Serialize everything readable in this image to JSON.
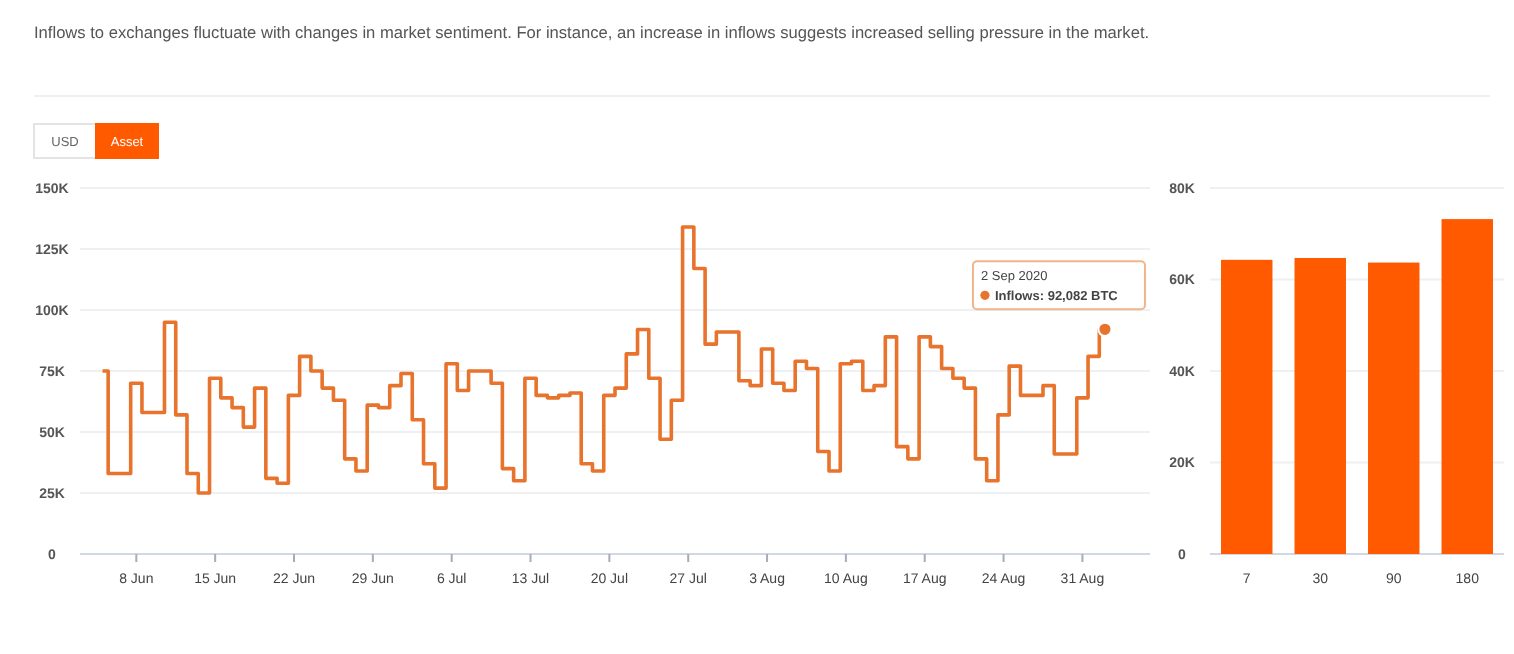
{
  "chart_data": [
    {
      "type": "step",
      "subtitle": "Inflows to exchanges fluctuate with changes in market sentiment. For instance, an increase in inflows suggests increased selling pressure in the market.",
      "x": [
        "2020-06-05",
        "2020-06-06",
        "2020-06-07",
        "2020-06-08",
        "2020-06-09",
        "2020-06-10",
        "2020-06-11",
        "2020-06-12",
        "2020-06-13",
        "2020-06-14",
        "2020-06-15",
        "2020-06-16",
        "2020-06-17",
        "2020-06-18",
        "2020-06-19",
        "2020-06-20",
        "2020-06-21",
        "2020-06-22",
        "2020-06-23",
        "2020-06-24",
        "2020-06-25",
        "2020-06-26",
        "2020-06-27",
        "2020-06-28",
        "2020-06-29",
        "2020-06-30",
        "2020-07-01",
        "2020-07-02",
        "2020-07-03",
        "2020-07-04",
        "2020-07-05",
        "2020-07-06",
        "2020-07-07",
        "2020-07-08",
        "2020-07-09",
        "2020-07-10",
        "2020-07-11",
        "2020-07-12",
        "2020-07-13",
        "2020-07-14",
        "2020-07-15",
        "2020-07-16",
        "2020-07-17",
        "2020-07-18",
        "2020-07-19",
        "2020-07-20",
        "2020-07-21",
        "2020-07-22",
        "2020-07-23",
        "2020-07-24",
        "2020-07-25",
        "2020-07-26",
        "2020-07-27",
        "2020-07-28",
        "2020-07-29",
        "2020-07-30",
        "2020-07-31",
        "2020-08-01",
        "2020-08-02",
        "2020-08-03",
        "2020-08-04",
        "2020-08-05",
        "2020-08-06",
        "2020-08-07",
        "2020-08-08",
        "2020-08-09",
        "2020-08-10",
        "2020-08-11",
        "2020-08-12",
        "2020-08-13",
        "2020-08-14",
        "2020-08-15",
        "2020-08-16",
        "2020-08-17",
        "2020-08-18",
        "2020-08-19",
        "2020-08-20",
        "2020-08-21",
        "2020-08-22",
        "2020-08-23",
        "2020-08-24",
        "2020-08-25",
        "2020-08-26",
        "2020-08-27",
        "2020-08-28",
        "2020-08-29",
        "2020-08-30",
        "2020-08-31",
        "2020-09-01",
        "2020-09-02"
      ],
      "series": [
        {
          "color": "#e8732c",
          "values": [
            75000,
            33000,
            33000,
            70000,
            58000,
            58000,
            95000,
            57000,
            33000,
            25000,
            72000,
            64000,
            60000,
            52000,
            68000,
            31000,
            29000,
            65000,
            81000,
            75000,
            68000,
            63000,
            39000,
            34000,
            61000,
            60000,
            69000,
            74000,
            55000,
            37000,
            27000,
            78000,
            67000,
            75000,
            75000,
            70000,
            35000,
            30000,
            72000,
            65000,
            64000,
            65000,
            66000,
            37000,
            34000,
            65000,
            68000,
            82000,
            92000,
            72000,
            47000,
            63000,
            134000,
            117000,
            86000,
            91000,
            91000,
            71000,
            69000,
            84000,
            70000,
            67000,
            79000,
            76000,
            42000,
            34000,
            78000,
            79000,
            67000,
            69000,
            89000,
            44000,
            39000,
            89000,
            85000,
            76000,
            72000,
            68000,
            39000,
            30000,
            57000,
            77000,
            65000,
            65000,
            69000,
            41000,
            41000,
            64000,
            81000,
            92082
          ]
        }
      ],
      "xlim": [
        "2020-06-03",
        "2020-09-06"
      ],
      "xticks": [
        {
          "value": "2020-06-08",
          "label": "8 Jun"
        },
        {
          "value": "2020-06-15",
          "label": "15 Jun"
        },
        {
          "value": "2020-06-22",
          "label": "22 Jun"
        },
        {
          "value": "2020-06-29",
          "label": "29 Jun"
        },
        {
          "value": "2020-07-06",
          "label": "6 Jul"
        },
        {
          "value": "2020-07-13",
          "label": "13 Jul"
        },
        {
          "value": "2020-07-20",
          "label": "20 Jul"
        },
        {
          "value": "2020-07-27",
          "label": "27 Jul"
        },
        {
          "value": "2020-08-03",
          "label": "3 Aug"
        },
        {
          "value": "2020-08-10",
          "label": "10 Aug"
        },
        {
          "value": "2020-08-17",
          "label": "17 Aug"
        },
        {
          "value": "2020-08-24",
          "label": "24 Aug"
        },
        {
          "value": "2020-08-31",
          "label": "31 Aug"
        }
      ],
      "ylim": [
        0,
        150000
      ],
      "yticks": [
        0,
        {
          "value": 25000,
          "label": "25K"
        },
        {
          "value": 50000,
          "label": "50K"
        },
        {
          "value": 75000,
          "label": "75K"
        },
        {
          "value": 100000,
          "label": "100K"
        },
        {
          "value": 125000,
          "label": "125K"
        },
        {
          "value": 150000,
          "label": "150K"
        }
      ],
      "grid": "y",
      "annotations": [
        "USD",
        "Asset",
        {
          "text": "2 Sep 2020\nInflows: 92,082 BTC",
          "x": "2020-09-02",
          "y": 92082
        }
      ]
    },
    {
      "type": "bar",
      "categories": [
        "7",
        "30",
        "90",
        "180"
      ],
      "values": [
        64300,
        64700,
        63700,
        73200
      ],
      "color": "#ff5a00",
      "ylim": [
        0,
        80000
      ],
      "yticks": [
        0,
        {
          "value": 20000,
          "label": "20K"
        },
        {
          "value": 40000,
          "label": "40K"
        },
        {
          "value": 60000,
          "label": "60K"
        },
        {
          "value": 80000,
          "label": "80K"
        }
      ],
      "grid": "y"
    }
  ]
}
